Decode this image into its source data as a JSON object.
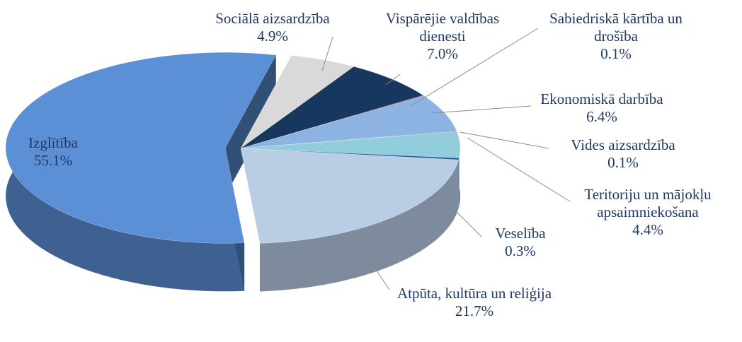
{
  "chart_data": {
    "type": "pie",
    "categories": [
      "Izglītība",
      "Sociālā aizsardzība",
      "Vispārējie valdības dienesti",
      "Sabiedriskā kārtība un drošība",
      "Ekonomiskā darbība",
      "Vides aizsardzība",
      "Teritoriju un mājokļu apsaimniekošana",
      "Veselība",
      "Atpūta, kultūra un reliģija"
    ],
    "values": [
      55.1,
      4.9,
      7.0,
      0.1,
      6.4,
      0.1,
      4.4,
      0.3,
      21.7
    ],
    "value_labels": [
      "55.1%",
      "4.9%",
      "7.0%",
      "0.1%",
      "6.4%",
      "0.1%",
      "4.4%",
      "0.3%",
      "21.7%"
    ],
    "colors": [
      "#5b8fd6",
      "#d9d9d9",
      "#17375e",
      "#c0504d",
      "#8db3e2",
      "#a6a6a6",
      "#92cddc",
      "#1f5fa0",
      "#b9cde5"
    ]
  }
}
